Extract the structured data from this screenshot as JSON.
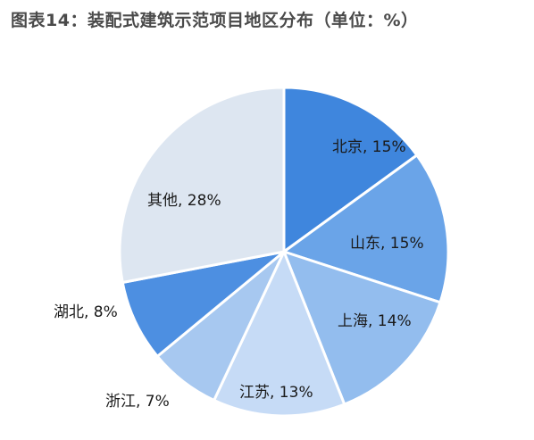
{
  "title": "图表14：装配式建筑示范项目地区分布（单位：%）",
  "chart_data": {
    "type": "pie",
    "title": "图表14：装配式建筑示范项目地区分布（单位：%）",
    "unit": "%",
    "slices": [
      {
        "name": "北京",
        "value": 15,
        "label": "北京, 15%",
        "color": "#3f86dd"
      },
      {
        "name": "山东",
        "value": 15,
        "label": "山东, 15%",
        "color": "#6aa4e8"
      },
      {
        "name": "上海",
        "value": 14,
        "label": "上海, 14%",
        "color": "#93bdee"
      },
      {
        "name": "江苏",
        "value": 13,
        "label": "江苏, 13%",
        "color": "#c6dbf6"
      },
      {
        "name": "浙江",
        "value": 7,
        "label": "浙江, 7%",
        "color": "#a7c8f0"
      },
      {
        "name": "湖北",
        "value": 8,
        "label": "湖北, 8%",
        "color": "#4d8fe1"
      },
      {
        "name": "其他",
        "value": 28,
        "label": "其他, 28%",
        "color": "#dde6f1"
      }
    ]
  }
}
